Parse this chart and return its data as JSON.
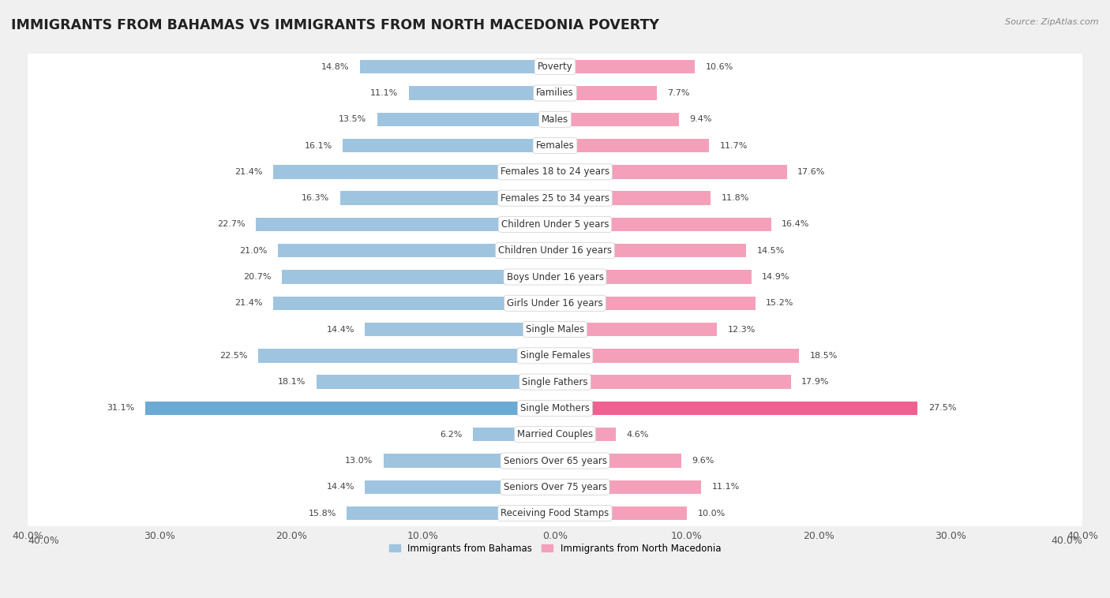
{
  "title": "IMMIGRANTS FROM BAHAMAS VS IMMIGRANTS FROM NORTH MACEDONIA POVERTY",
  "source": "Source: ZipAtlas.com",
  "categories": [
    "Poverty",
    "Families",
    "Males",
    "Females",
    "Females 18 to 24 years",
    "Females 25 to 34 years",
    "Children Under 5 years",
    "Children Under 16 years",
    "Boys Under 16 years",
    "Girls Under 16 years",
    "Single Males",
    "Single Females",
    "Single Fathers",
    "Single Mothers",
    "Married Couples",
    "Seniors Over 65 years",
    "Seniors Over 75 years",
    "Receiving Food Stamps"
  ],
  "bahamas_values": [
    14.8,
    11.1,
    13.5,
    16.1,
    21.4,
    16.3,
    22.7,
    21.0,
    20.7,
    21.4,
    14.4,
    22.5,
    18.1,
    31.1,
    6.2,
    13.0,
    14.4,
    15.8
  ],
  "macedonia_values": [
    10.6,
    7.7,
    9.4,
    11.7,
    17.6,
    11.8,
    16.4,
    14.5,
    14.9,
    15.2,
    12.3,
    18.5,
    17.9,
    27.5,
    4.6,
    9.6,
    11.1,
    10.0
  ],
  "bahamas_color": "#9ec4e0",
  "macedonia_color": "#f5a0ba",
  "bahamas_highlight_color": "#6aaad4",
  "macedonia_highlight_color": "#f06090",
  "background_color": "#f0f0f0",
  "bar_bg_color": "#ffffff",
  "separator_color": "#d8d8d8",
  "xlim": 40.0,
  "legend_label_bahamas": "Immigrants from Bahamas",
  "legend_label_macedonia": "Immigrants from North Macedonia",
  "title_fontsize": 12.5,
  "label_fontsize": 8.5,
  "value_fontsize": 8.0,
  "tick_fontsize": 9.0
}
